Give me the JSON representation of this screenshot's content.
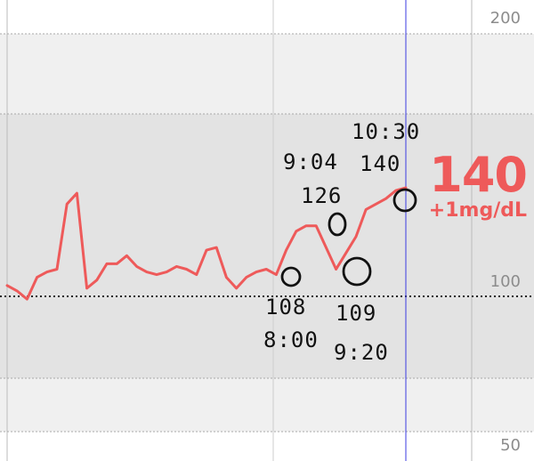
{
  "colors": {
    "trace": "#ee5a5a",
    "target_band": "#e3e3e3",
    "outer_band": "#f0f0f0",
    "now_line": "#3b3be0",
    "grid_line": "#bbbbbb",
    "axis_text": "#8c8c8c",
    "ink": "#111111"
  },
  "axis": {
    "label_top": "200",
    "label_mid": "100",
    "label_bottom": "50"
  },
  "current": {
    "value": "140",
    "delta": "+1mg/dL"
  },
  "annotations": {
    "a_value": "108",
    "a_time": "8:00",
    "b_time": "9:04",
    "b_value": "126",
    "c_value": "109",
    "c_time": "9:20",
    "d_time": "10:30",
    "d_value": "140"
  },
  "trace": {
    "values": [
      104,
      102,
      99,
      107,
      109,
      110,
      134,
      138,
      103,
      106,
      112,
      112,
      115,
      111,
      109,
      108,
      109,
      111,
      110,
      108,
      117,
      118,
      107,
      103,
      107,
      109,
      110,
      108,
      117,
      124,
      126,
      126,
      118,
      110,
      116,
      122,
      132,
      134,
      136,
      139,
      140
    ]
  }
}
